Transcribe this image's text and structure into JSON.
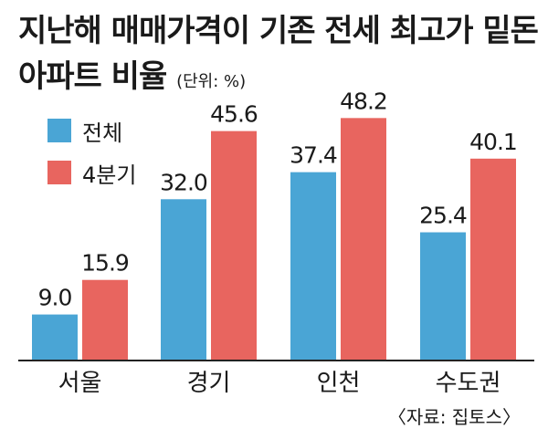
{
  "title_line1": "지난해 매매가격이 기존 전세 최고가 밑돈",
  "title_line2": "아파트 비율",
  "unit": "(단위: %)",
  "source": "〈자료: 집토스〉",
  "colors": {
    "series1": "#4aa5d5",
    "series2": "#e8655f"
  },
  "chart_data": {
    "type": "bar",
    "categories": [
      "서울",
      "경기",
      "인천",
      "수도권"
    ],
    "series": [
      {
        "name": "전체",
        "values": [
          9.0,
          32.0,
          37.4,
          25.4
        ]
      },
      {
        "name": "4분기",
        "values": [
          15.9,
          45.6,
          48.2,
          40.1
        ]
      }
    ],
    "ylim": [
      0,
      55
    ],
    "grid": false,
    "legend": "top-left"
  }
}
